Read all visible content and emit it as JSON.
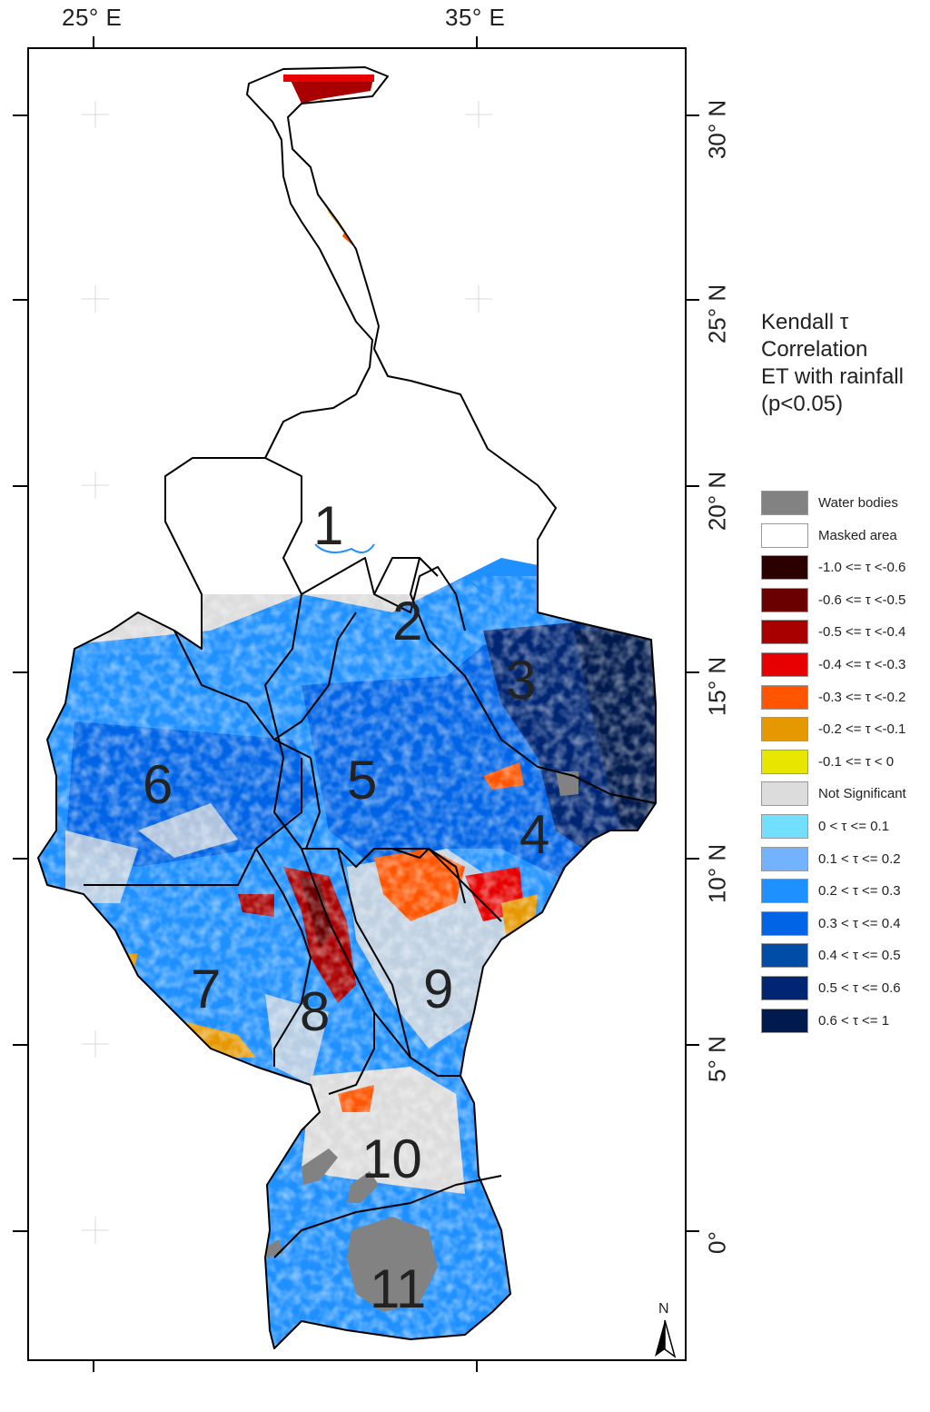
{
  "axes": {
    "lon_labels": [
      "25° E",
      "35° E"
    ],
    "lat_labels": [
      "30° N",
      "25° N",
      "20° N",
      "15° N",
      "10° N",
      "5° N",
      "0°"
    ]
  },
  "legend": {
    "title_lines": [
      "Kendall τ",
      "Correlation",
      "ET with rainfall",
      "(p<0.05)"
    ],
    "items": [
      {
        "label": "Water bodies",
        "color": "#828282"
      },
      {
        "label": "Masked area",
        "color": "#ffffff"
      },
      {
        "label": "-1.0 <= τ <-0.6",
        "color": "#2a0000"
      },
      {
        "label": "-0.6 <= τ <-0.5",
        "color": "#6b0000"
      },
      {
        "label": "-0.5 <= τ <-0.4",
        "color": "#a80000"
      },
      {
        "label": "-0.4 <= τ <-0.3",
        "color": "#e60000"
      },
      {
        "label": "-0.3 <= τ <-0.2",
        "color": "#ff5500"
      },
      {
        "label": "-0.2 <= τ <-0.1",
        "color": "#e69800"
      },
      {
        "label": "-0.1 <= τ < 0",
        "color": "#e6e600"
      },
      {
        "label": "Not Significant",
        "color": "#dcdcdc"
      },
      {
        "label": "0 < τ <= 0.1",
        "color": "#73dfff"
      },
      {
        "label": "0.1 < τ <= 0.2",
        "color": "#73b2ff"
      },
      {
        "label": "0.2 < τ <= 0.3",
        "color": "#1e90ff"
      },
      {
        "label": "0.3 < τ <= 0.4",
        "color": "#0064e6"
      },
      {
        "label": "0.4 < τ <= 0.5",
        "color": "#004da8"
      },
      {
        "label": "0.5 < τ <= 0.6",
        "color": "#002673"
      },
      {
        "label": "0.6 < τ <= 1",
        "color": "#001a4d"
      }
    ]
  },
  "regions": [
    "1",
    "2",
    "3",
    "4",
    "5",
    "6",
    "7",
    "8",
    "9",
    "10",
    "11"
  ],
  "north_arrow": "N"
}
